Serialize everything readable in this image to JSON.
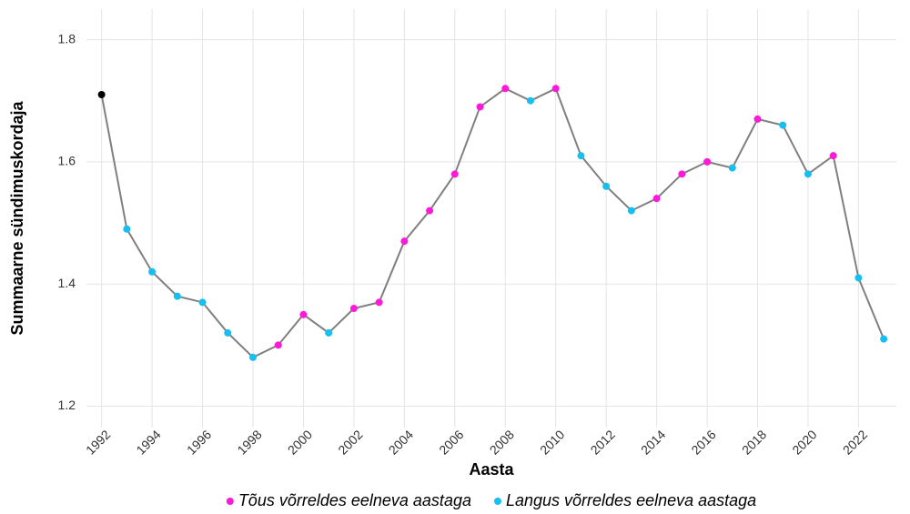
{
  "chart_data": {
    "type": "line",
    "x_label": "Aasta",
    "y_label": "Summaarne sündimuskordaja",
    "x": [
      1992,
      1993,
      1994,
      1995,
      1996,
      1997,
      1998,
      1999,
      2000,
      2001,
      2002,
      2003,
      2004,
      2005,
      2006,
      2007,
      2008,
      2009,
      2010,
      2011,
      2012,
      2013,
      2014,
      2015,
      2016,
      2017,
      2018,
      2019,
      2020,
      2021,
      2022,
      2023
    ],
    "values": [
      1.71,
      1.49,
      1.42,
      1.38,
      1.37,
      1.32,
      1.28,
      1.3,
      1.35,
      1.32,
      1.36,
      1.37,
      1.47,
      1.52,
      1.58,
      1.69,
      1.72,
      1.7,
      1.72,
      1.61,
      1.56,
      1.52,
      1.54,
      1.58,
      1.6,
      1.59,
      1.67,
      1.66,
      1.58,
      1.61,
      1.41,
      1.31
    ],
    "color": "#7f7f7f",
    "first_point_color": "#000000",
    "legend": [
      {
        "name": "Tõus võrreldes eelneva aastaga",
        "color": "#ff1ad9"
      },
      {
        "name": "Langus võrreldes eelneva aastaga",
        "color": "#16bff0"
      }
    ],
    "xlim": [
      1991.4,
      2023.5
    ],
    "xticks": [
      1992,
      1994,
      1996,
      1998,
      2000,
      2002,
      2004,
      2006,
      2008,
      2010,
      2012,
      2014,
      2016,
      2018,
      2020,
      2022
    ],
    "ylim": [
      1.165,
      1.85
    ],
    "yticks": [
      1.2,
      1.4,
      1.6,
      1.8
    ],
    "grid": true
  }
}
